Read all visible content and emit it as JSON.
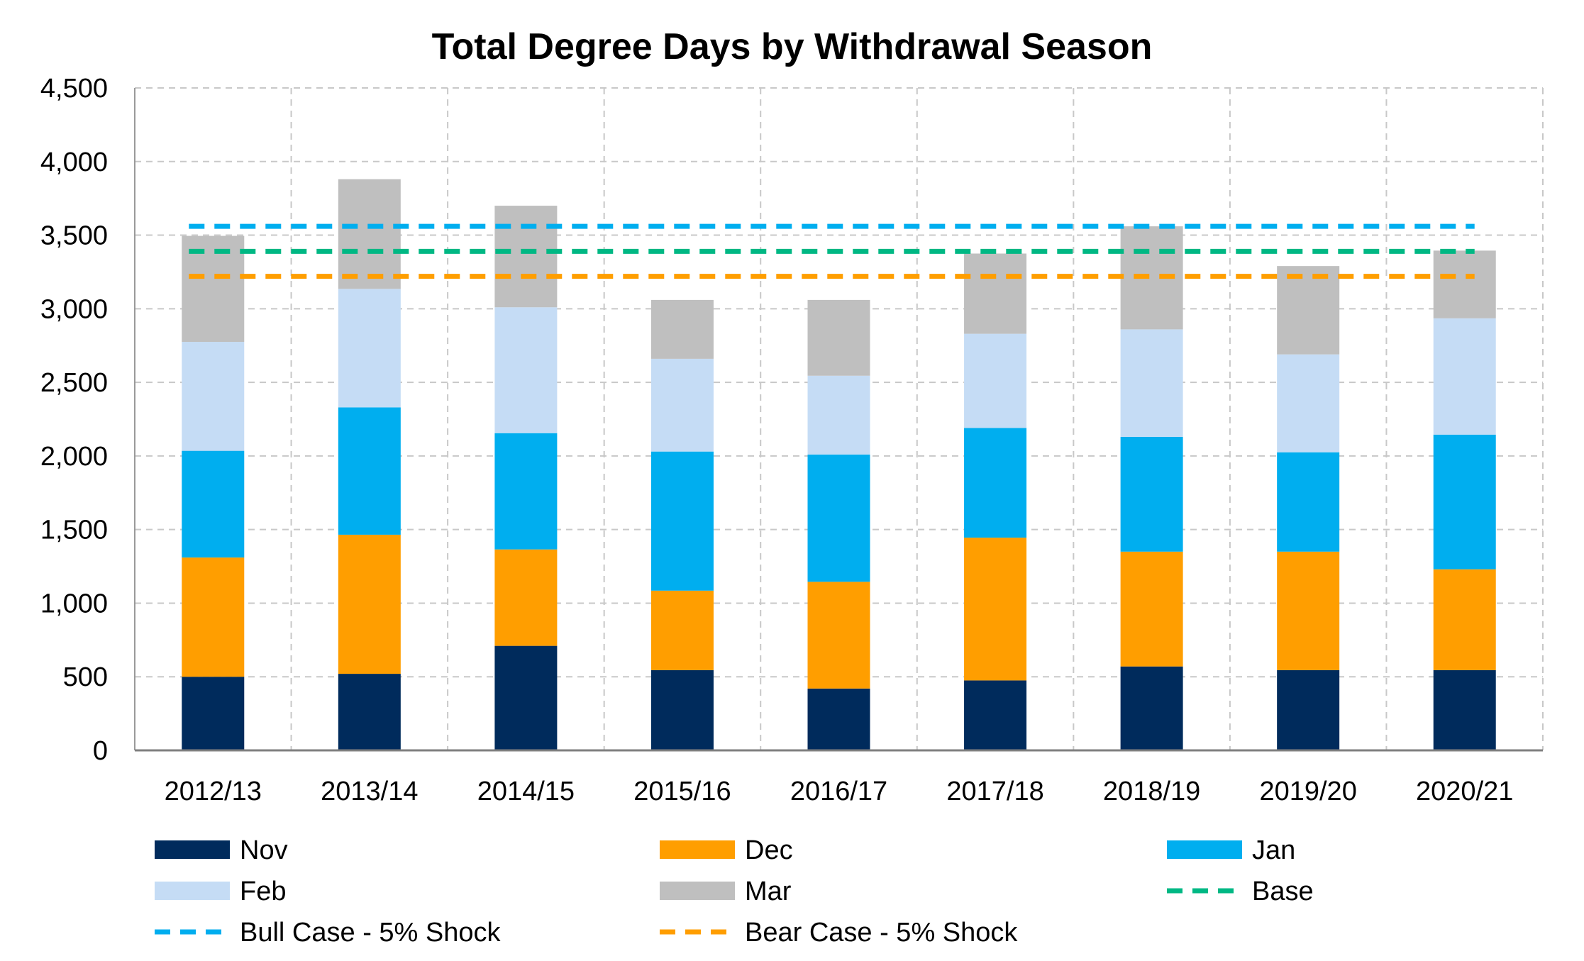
{
  "chart_data": {
    "type": "bar",
    "stacked": true,
    "title": "Total Degree Days by Withdrawal Season",
    "xlabel": "",
    "ylabel": "",
    "ylim": [
      0,
      4500
    ],
    "yticks": [
      0,
      500,
      1000,
      1500,
      2000,
      2500,
      3000,
      3500,
      4000,
      4500
    ],
    "ytick_labels": [
      "0",
      "500",
      "1,000",
      "1,500",
      "2,000",
      "2,500",
      "3,000",
      "3,500",
      "4,000",
      "4,500"
    ],
    "grid": true,
    "legend_position": "bottom",
    "categories": [
      "2012/13",
      "2013/14",
      "2014/15",
      "2015/16",
      "2016/17",
      "2017/18",
      "2018/19",
      "2019/20",
      "2020/21"
    ],
    "series": [
      {
        "name": "Nov",
        "color": "#002B5C",
        "values": [
          500,
          520,
          710,
          545,
          420,
          475,
          570,
          545,
          545
        ]
      },
      {
        "name": "Dec",
        "color": "#FF9E00",
        "values": [
          810,
          945,
          655,
          540,
          725,
          970,
          780,
          805,
          685
        ]
      },
      {
        "name": "Jan",
        "color": "#00AEEF",
        "values": [
          725,
          865,
          790,
          945,
          865,
          745,
          780,
          675,
          915
        ]
      },
      {
        "name": "Feb",
        "color": "#C5DCF5",
        "values": [
          740,
          805,
          855,
          630,
          535,
          640,
          730,
          665,
          790
        ]
      },
      {
        "name": "Mar",
        "color": "#BFBFBF",
        "values": [
          720,
          745,
          690,
          400,
          515,
          545,
          700,
          600,
          460
        ]
      }
    ],
    "reference_lines": [
      {
        "name": "Base",
        "color": "#00B884",
        "value": 3390
      },
      {
        "name": "Bull Case - 5% Shock",
        "color": "#00AEEF",
        "value": 3560
      },
      {
        "name": "Bear Case - 5% Shock",
        "color": "#FF9E00",
        "value": 3220
      }
    ],
    "legend": [
      {
        "label": "Nov",
        "kind": "box",
        "color": "#002B5C"
      },
      {
        "label": "Dec",
        "kind": "box",
        "color": "#FF9E00"
      },
      {
        "label": "Jan",
        "kind": "box",
        "color": "#00AEEF"
      },
      {
        "label": "Feb",
        "kind": "box",
        "color": "#C5DCF5"
      },
      {
        "label": "Mar",
        "kind": "box",
        "color": "#BFBFBF"
      },
      {
        "label": "Base",
        "kind": "dash",
        "color": "#00B884"
      },
      {
        "label": "Bull Case - 5% Shock",
        "kind": "dash",
        "color": "#00AEEF"
      },
      {
        "label": "Bear Case - 5% Shock",
        "kind": "dash",
        "color": "#FF9E00"
      }
    ]
  }
}
